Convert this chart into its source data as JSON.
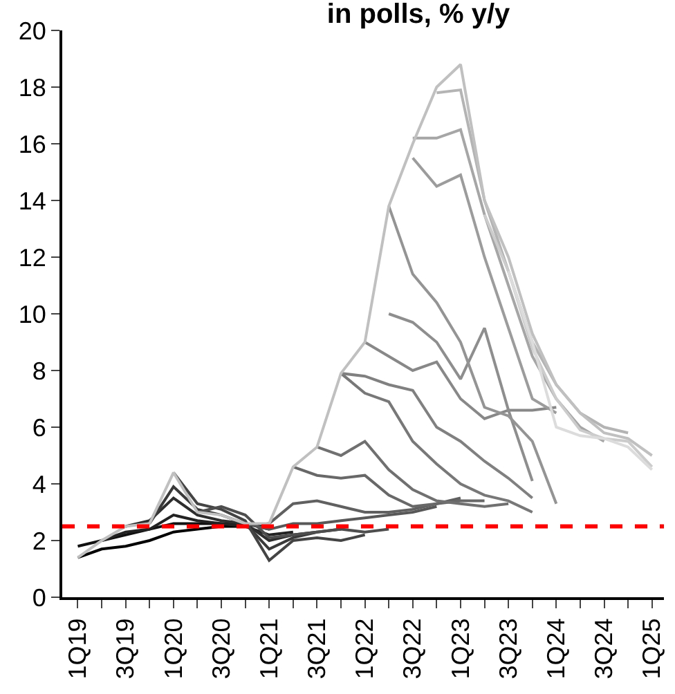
{
  "chart_data": {
    "type": "line",
    "title": "in polls, % y/y",
    "categories": [
      "1Q19",
      null,
      "3Q19",
      null,
      "1Q20",
      null,
      "3Q20",
      null,
      "1Q21",
      null,
      "3Q21",
      null,
      "1Q22",
      null,
      "3Q22",
      null,
      "1Q23",
      null,
      "3Q23",
      null,
      "1Q24",
      null,
      "3Q24",
      null,
      "1Q25"
    ],
    "ylim": [
      0,
      20
    ],
    "yticks": [
      0,
      2,
      4,
      6,
      8,
      10,
      12,
      14,
      16,
      18,
      20
    ],
    "grid": false,
    "marker": "none",
    "line_style": "solid",
    "ref_lines": [
      {
        "axis": "y",
        "value": 2.5,
        "color": "#ff0000",
        "line_style": "dashed"
      }
    ],
    "series": [
      {
        "color": "#000000",
        "values": [
          1.4,
          1.7,
          1.8,
          2.0,
          2.3,
          2.4,
          2.5,
          2.5,
          2.6,
          null,
          null,
          null,
          null,
          null,
          null,
          null,
          null,
          null,
          null,
          null,
          null,
          null,
          null,
          null,
          null
        ]
      },
      {
        "color": "#111111",
        "values": [
          1.8,
          2.0,
          2.2,
          2.4,
          2.6,
          2.6,
          2.6,
          2.6,
          2.4,
          null,
          null,
          null,
          null,
          null,
          null,
          null,
          null,
          null,
          null,
          null,
          null,
          null,
          null,
          null,
          null
        ]
      },
      {
        "color": "#222222",
        "values": [
          null,
          2.0,
          2.3,
          2.4,
          2.9,
          2.7,
          2.6,
          2.5,
          2.2,
          2.3,
          null,
          null,
          null,
          null,
          null,
          null,
          null,
          null,
          null,
          null,
          null,
          null,
          null,
          null,
          null
        ]
      },
      {
        "color": "#2e2e2e",
        "values": [
          null,
          null,
          2.5,
          2.7,
          3.5,
          2.9,
          2.7,
          2.6,
          2.0,
          2.2,
          2.3,
          null,
          null,
          null,
          null,
          null,
          null,
          null,
          null,
          null,
          null,
          null,
          null,
          null,
          null
        ]
      },
      {
        "color": "#3a3a3a",
        "values": [
          null,
          null,
          null,
          2.6,
          3.9,
          3.1,
          2.9,
          2.6,
          1.7,
          2.1,
          2.3,
          2.4,
          null,
          null,
          null,
          null,
          null,
          null,
          null,
          null,
          null,
          null,
          null,
          null,
          null
        ]
      },
      {
        "color": "#444444",
        "values": [
          null,
          null,
          null,
          null,
          4.4,
          3.3,
          3.1,
          2.7,
          1.3,
          2.0,
          2.1,
          2.0,
          2.2,
          null,
          null,
          null,
          null,
          null,
          null,
          null,
          null,
          null,
          null,
          null,
          null
        ]
      },
      {
        "color": "#4e4e4e",
        "values": [
          null,
          null,
          null,
          null,
          null,
          3.0,
          3.2,
          2.9,
          2.1,
          2.2,
          2.3,
          2.4,
          2.3,
          2.4,
          null,
          null,
          null,
          null,
          null,
          null,
          null,
          null,
          null,
          null,
          null
        ]
      },
      {
        "color": "#585858",
        "values": [
          null,
          null,
          null,
          null,
          null,
          null,
          null,
          2.6,
          2.4,
          2.6,
          2.6,
          2.7,
          2.8,
          2.9,
          3.0,
          3.2,
          null,
          null,
          null,
          null,
          null,
          null,
          null,
          null,
          null
        ]
      },
      {
        "color": "#606060",
        "values": [
          null,
          null,
          null,
          null,
          null,
          null,
          null,
          null,
          2.6,
          3.3,
          3.4,
          3.2,
          3.0,
          3.0,
          3.1,
          3.3,
          3.5,
          null,
          null,
          null,
          null,
          null,
          null,
          null,
          null
        ]
      },
      {
        "color": "#686868",
        "values": [
          null,
          null,
          null,
          null,
          null,
          null,
          null,
          null,
          null,
          4.6,
          4.3,
          4.2,
          4.3,
          3.6,
          3.2,
          3.3,
          3.4,
          3.4,
          null,
          null,
          null,
          null,
          null,
          null,
          null
        ]
      },
      {
        "color": "#707070",
        "values": [
          null,
          null,
          null,
          null,
          null,
          null,
          null,
          null,
          null,
          null,
          5.3,
          5.0,
          5.5,
          4.5,
          3.8,
          3.4,
          3.3,
          3.2,
          3.3,
          null,
          null,
          null,
          null,
          null,
          null
        ]
      },
      {
        "color": "#787878",
        "values": [
          null,
          null,
          null,
          null,
          null,
          null,
          null,
          null,
          null,
          null,
          null,
          7.9,
          7.2,
          6.9,
          5.5,
          4.7,
          4.0,
          3.6,
          3.4,
          3.0,
          null,
          null,
          null,
          null,
          null
        ]
      },
      {
        "color": "#808080",
        "values": [
          null,
          null,
          null,
          null,
          null,
          null,
          null,
          null,
          null,
          null,
          null,
          7.9,
          7.8,
          7.5,
          7.3,
          6.0,
          5.5,
          4.8,
          4.2,
          3.5,
          null,
          null,
          null,
          null,
          null
        ]
      },
      {
        "color": "#888888",
        "values": [
          null,
          null,
          null,
          null,
          null,
          null,
          null,
          null,
          null,
          null,
          null,
          null,
          9.0,
          8.5,
          8.0,
          8.3,
          7.0,
          6.3,
          6.6,
          6.6,
          6.7,
          null,
          null,
          null,
          null
        ]
      },
      {
        "color": "#8e8e8e",
        "values": [
          null,
          null,
          null,
          null,
          null,
          null,
          null,
          null,
          null,
          null,
          null,
          null,
          null,
          10.0,
          9.7,
          9.0,
          7.7,
          9.5,
          6.6,
          4.1,
          null,
          null,
          null,
          null,
          null
        ]
      },
      {
        "color": "#949494",
        "values": [
          null,
          null,
          null,
          null,
          null,
          null,
          null,
          null,
          null,
          null,
          null,
          null,
          null,
          13.8,
          11.4,
          10.4,
          9.0,
          6.7,
          6.4,
          5.5,
          3.3,
          null,
          null,
          null,
          null
        ]
      },
      {
        "color": "#9c9c9c",
        "values": [
          null,
          null,
          null,
          null,
          null,
          null,
          null,
          null,
          null,
          null,
          null,
          null,
          null,
          null,
          15.5,
          14.5,
          14.9,
          12.0,
          9.5,
          7.0,
          6.5,
          null,
          null,
          null,
          null
        ]
      },
      {
        "color": "#a6a6a6",
        "values": [
          null,
          null,
          null,
          null,
          null,
          null,
          null,
          null,
          null,
          null,
          null,
          null,
          null,
          null,
          16.2,
          16.2,
          16.5,
          13.5,
          11.0,
          8.5,
          7.0,
          6.0,
          5.5,
          null,
          null
        ]
      },
      {
        "color": "#b4b4b4",
        "values": [
          null,
          null,
          null,
          null,
          null,
          null,
          null,
          null,
          null,
          null,
          null,
          null,
          null,
          null,
          null,
          17.8,
          17.9,
          14.0,
          11.5,
          9.0,
          7.5,
          6.5,
          6.0,
          5.8,
          null
        ]
      },
      {
        "color": "#c0c0c0",
        "values": [
          1.4,
          2.0,
          2.5,
          2.6,
          4.4,
          3.0,
          2.9,
          2.6,
          2.6,
          4.6,
          5.3,
          7.9,
          9.0,
          13.8,
          16.0,
          18.0,
          18.8,
          14.0,
          12.0,
          9.3,
          7.5,
          6.5,
          5.8,
          5.6,
          5.0
        ]
      },
      {
        "color": "#cccccc",
        "values": [
          null,
          null,
          null,
          null,
          null,
          null,
          null,
          null,
          null,
          null,
          null,
          null,
          null,
          null,
          null,
          null,
          null,
          13.5,
          11.5,
          8.8,
          7.0,
          5.9,
          5.6,
          5.5,
          4.6
        ]
      },
      {
        "color": "#dcdcdc",
        "values": [
          null,
          null,
          null,
          null,
          null,
          null,
          null,
          null,
          null,
          null,
          null,
          null,
          null,
          null,
          null,
          null,
          null,
          null,
          11.5,
          9.0,
          6.0,
          5.7,
          5.6,
          5.3,
          4.5
        ]
      }
    ]
  }
}
